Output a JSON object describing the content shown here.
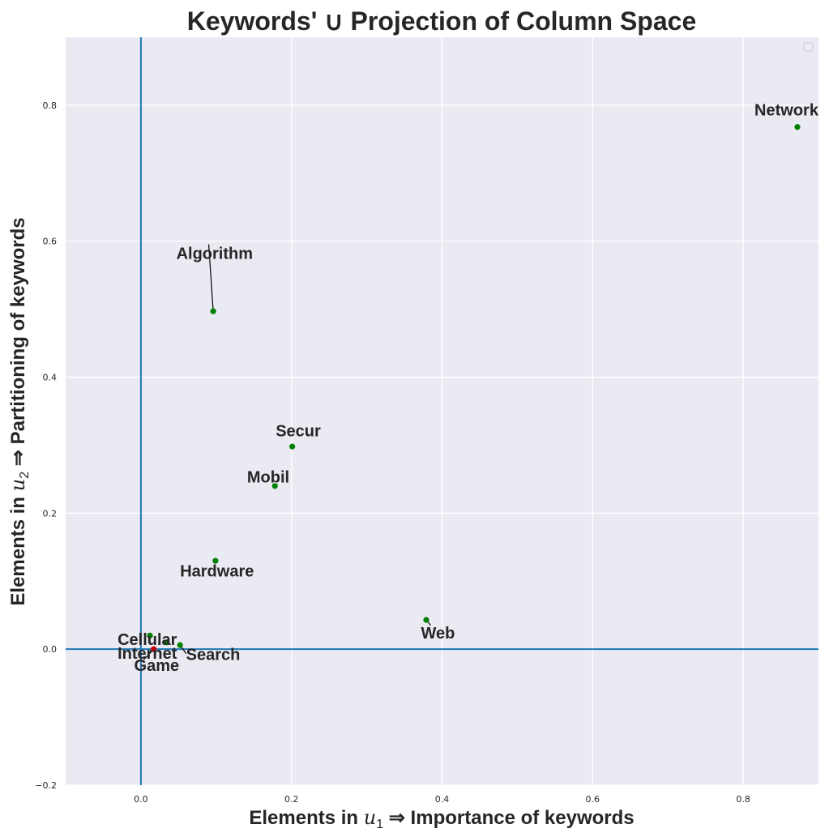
{
  "chart_data": {
    "type": "scatter",
    "title": "Keywords' ∪ Projection of Column Space",
    "xlabel": {
      "pre": "Elements in ",
      "var": "u",
      "sub": "1",
      "post": " ⇒  Importance of keywords"
    },
    "ylabel": {
      "pre": "Elements in ",
      "var": "u",
      "sub": "2",
      "post": " ⇒  Partitioning of keywords"
    },
    "xlim": [
      -0.1,
      0.9
    ],
    "ylim": [
      -0.2,
      0.9
    ],
    "xticks": [
      0.0,
      0.2,
      0.4,
      0.6,
      0.8
    ],
    "yticks": [
      -0.2,
      0.0,
      0.2,
      0.4,
      0.6,
      0.8
    ],
    "xtick_labels": [
      "0.0",
      "0.2",
      "0.4",
      "0.6",
      "0.8"
    ],
    "ytick_labels": [
      "−0.2",
      "0.0",
      "0.2",
      "0.4",
      "0.6",
      "0.8"
    ],
    "grid": true,
    "reference_lines": {
      "x": 0.0,
      "y": 0.0,
      "color": "#1f77b4"
    },
    "legend": "top-right (empty)",
    "background_color": "#eaeaf2",
    "points": [
      {
        "label": "Network",
        "x": 0.872,
        "y": 0.768,
        "color": "#008000",
        "text_x": 0.815,
        "text_y": 0.785,
        "leader": false
      },
      {
        "label": "Algorithm",
        "x": 0.096,
        "y": 0.497,
        "color": "#008000",
        "text_x": 0.047,
        "text_y": 0.574,
        "leader": true
      },
      {
        "label": "Secur",
        "x": 0.201,
        "y": 0.298,
        "color": "#008000",
        "text_x": 0.179,
        "text_y": 0.313,
        "leader": false
      },
      {
        "label": "Mobil",
        "x": 0.178,
        "y": 0.24,
        "color": "#008000",
        "text_x": 0.141,
        "text_y": 0.245,
        "leader": false
      },
      {
        "label": "Hardware",
        "x": 0.099,
        "y": 0.13,
        "color": "#008000",
        "text_x": 0.052,
        "text_y": 0.107,
        "leader": false
      },
      {
        "label": "Web",
        "x": 0.379,
        "y": 0.043,
        "color": "#008000",
        "text_x": 0.372,
        "text_y": 0.016,
        "leader": true
      },
      {
        "label": "Cellular",
        "x": 0.012,
        "y": 0.02,
        "color": "#008000",
        "text_x": -0.031,
        "text_y": 0.006,
        "leader": false
      },
      {
        "label": "Search",
        "x": 0.052,
        "y": 0.006,
        "color": "#008000",
        "text_x": 0.06,
        "text_y": -0.016,
        "leader": true
      },
      {
        "label": "Internet",
        "x": 0.034,
        "y": 0.01,
        "color": "#008000",
        "text_x": -0.031,
        "text_y": -0.014,
        "leader": false
      },
      {
        "label": "Game",
        "x": 0.017,
        "y": 0.0,
        "color": "#cc0000",
        "text_x": -0.009,
        "text_y": -0.032,
        "leader": true
      }
    ]
  }
}
